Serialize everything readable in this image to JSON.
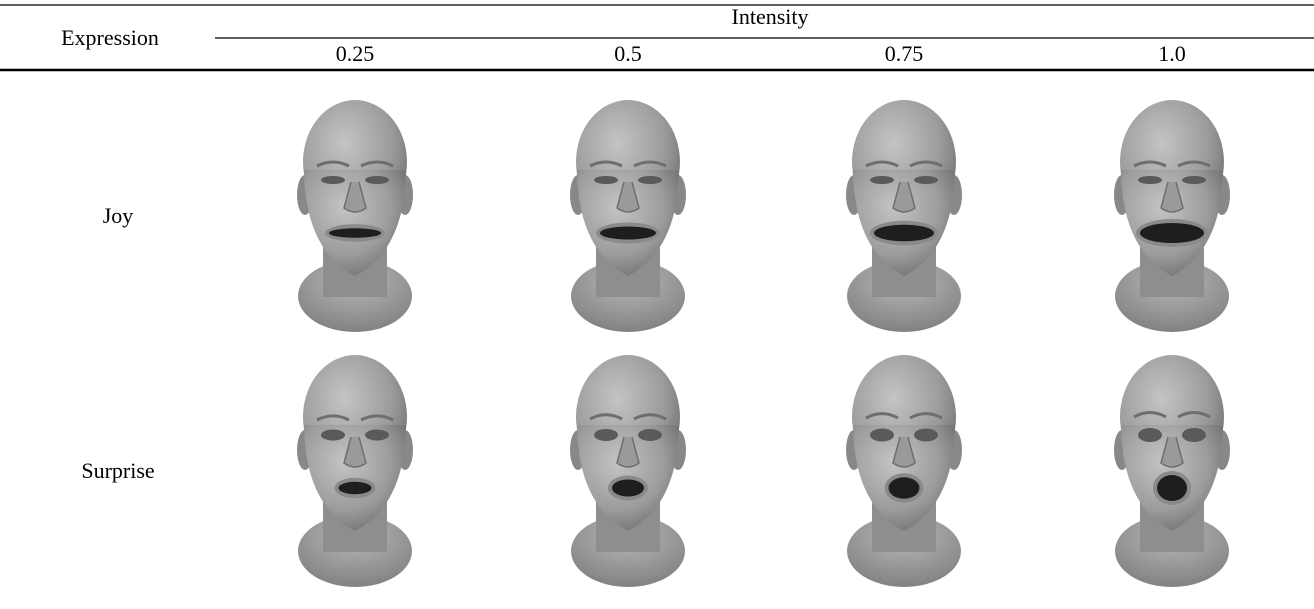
{
  "header": {
    "row_label": "Expression",
    "group": "Intensity",
    "columns": [
      "0.25",
      "0.5",
      "0.75",
      "1.0"
    ]
  },
  "rows": [
    {
      "label": "Joy"
    },
    {
      "label": "Surprise"
    }
  ]
}
